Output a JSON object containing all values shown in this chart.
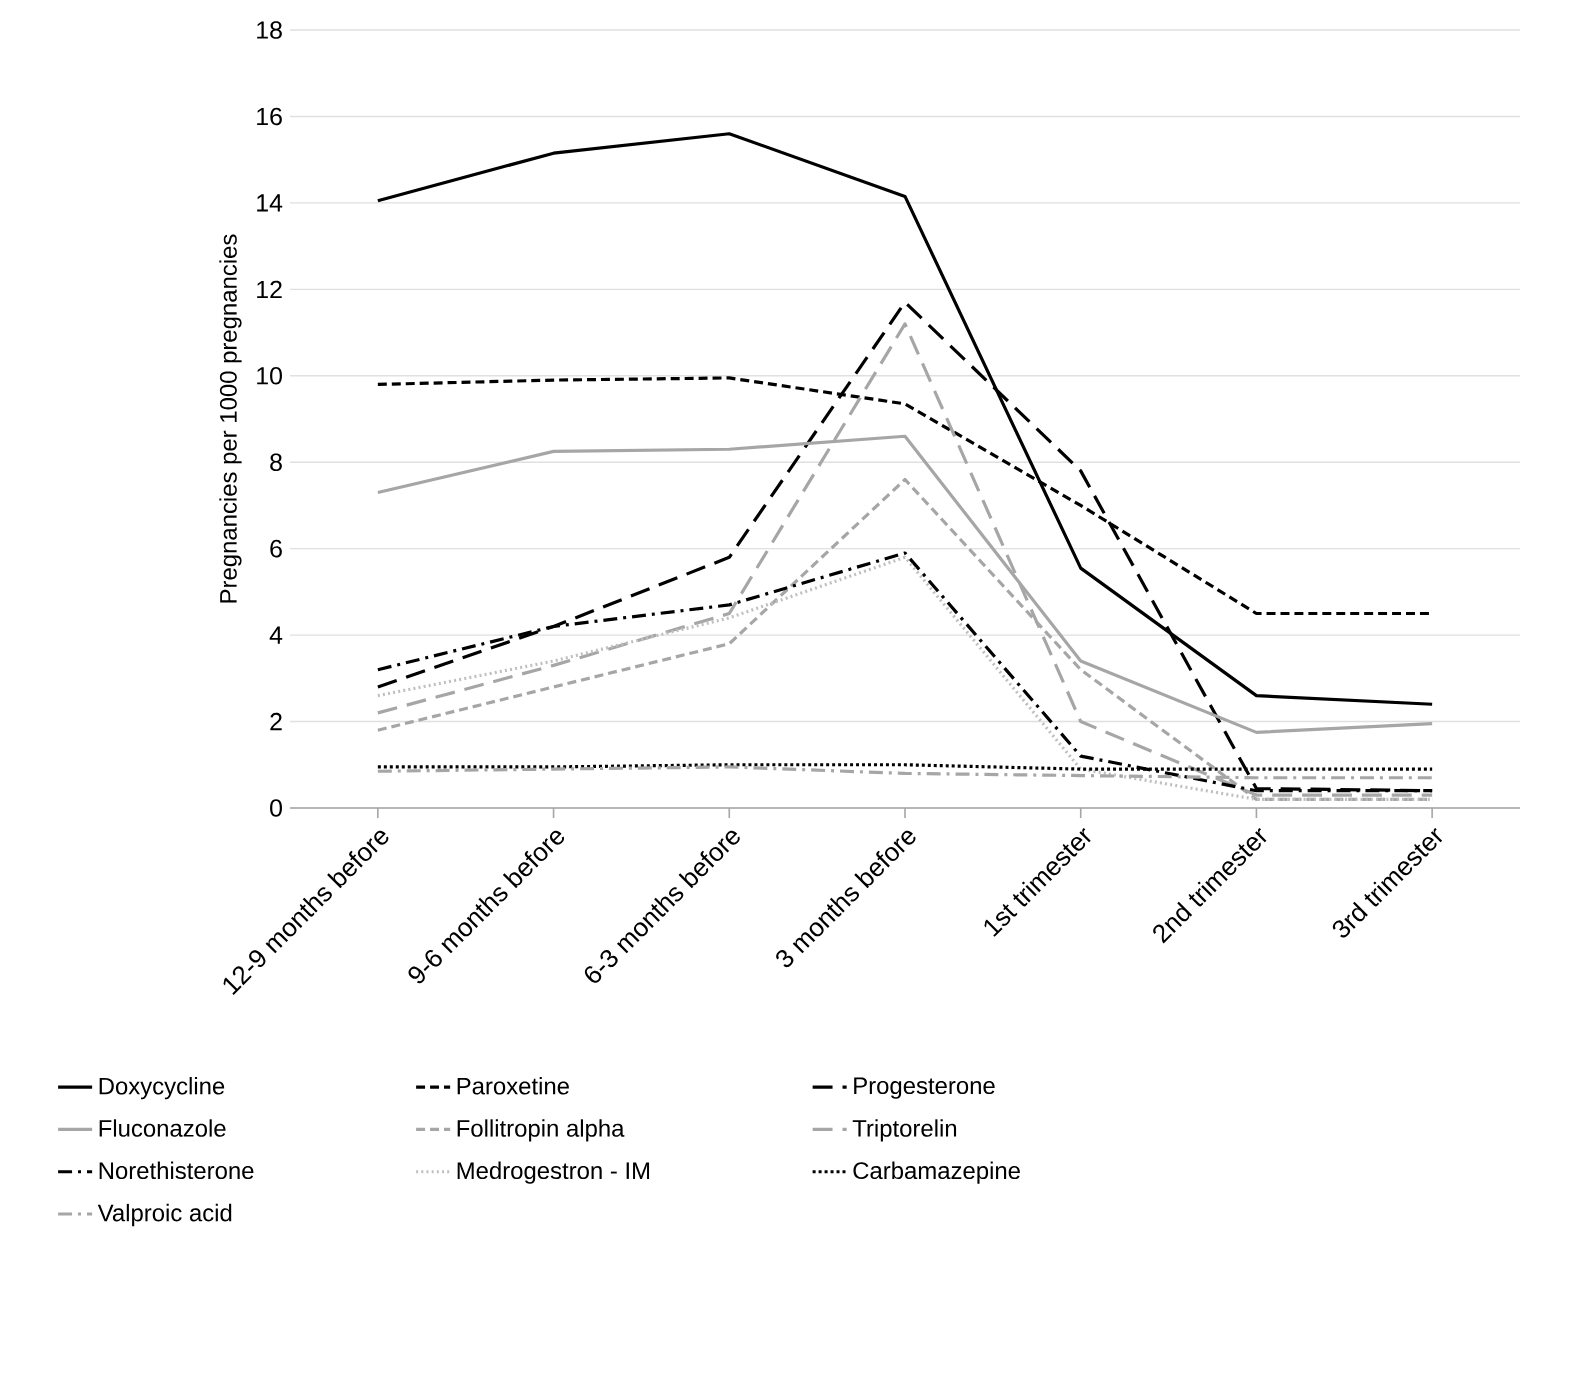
{
  "chart_data": {
    "type": "line",
    "ylabel": "Pregnancies per 1000 pregnancies",
    "categories": [
      "12-9 months before",
      "9-6 months before",
      "6-3 months before",
      "3 months before",
      "1st trimester",
      "2nd trimester",
      "3rd trimester"
    ],
    "ylim": [
      0,
      18
    ],
    "yticks": [
      0,
      2,
      4,
      6,
      8,
      10,
      12,
      14,
      16,
      18
    ],
    "grid": "y",
    "legend": "bottom",
    "series": [
      {
        "name": "Doxycycline",
        "color": "#000000",
        "line_style": "solid",
        "values": [
          14.05,
          15.15,
          15.6,
          14.15,
          5.55,
          2.6,
          2.4
        ]
      },
      {
        "name": "Paroxetine",
        "color": "#000000",
        "line_style": "dashed",
        "values": [
          9.8,
          9.9,
          9.95,
          9.35,
          7.0,
          4.5,
          4.5
        ]
      },
      {
        "name": "Progesterone",
        "color": "#000000",
        "line_style": "long dashed",
        "values": [
          2.8,
          4.2,
          5.8,
          11.7,
          7.8,
          0.45,
          0.4
        ]
      },
      {
        "name": "Fluconazole",
        "color": "#a6a6a6",
        "line_style": "solid",
        "values": [
          7.3,
          8.25,
          8.3,
          8.6,
          3.4,
          1.75,
          1.95
        ]
      },
      {
        "name": "Follitropin alpha",
        "color": "#a6a6a6",
        "line_style": "dashed",
        "values": [
          1.8,
          2.8,
          3.8,
          7.6,
          3.2,
          0.2,
          0.2
        ]
      },
      {
        "name": "Triptorelin",
        "color": "#a6a6a6",
        "line_style": "long dashed",
        "values": [
          2.2,
          3.3,
          4.5,
          11.2,
          2.0,
          0.3,
          0.3
        ]
      },
      {
        "name": "Norethisterone",
        "color": "#000000",
        "line_style": "dashdot",
        "values": [
          3.2,
          4.2,
          4.7,
          5.9,
          1.2,
          0.4,
          0.4
        ]
      },
      {
        "name": "Medrogestron - IM",
        "color": "#bfbfbf",
        "line_style": "dotted",
        "values": [
          2.6,
          3.4,
          4.4,
          5.8,
          0.9,
          0.2,
          0.2
        ]
      },
      {
        "name": "Carbamazepine",
        "color": "#000000",
        "line_style": "densely dotted",
        "values": [
          0.95,
          0.95,
          1.0,
          1.0,
          0.9,
          0.9,
          0.9
        ]
      },
      {
        "name": "Valproic acid",
        "color": "#a6a6a6",
        "line_style": "dashdot",
        "values": [
          0.85,
          0.9,
          0.95,
          0.8,
          0.75,
          0.7,
          0.7
        ]
      }
    ]
  }
}
